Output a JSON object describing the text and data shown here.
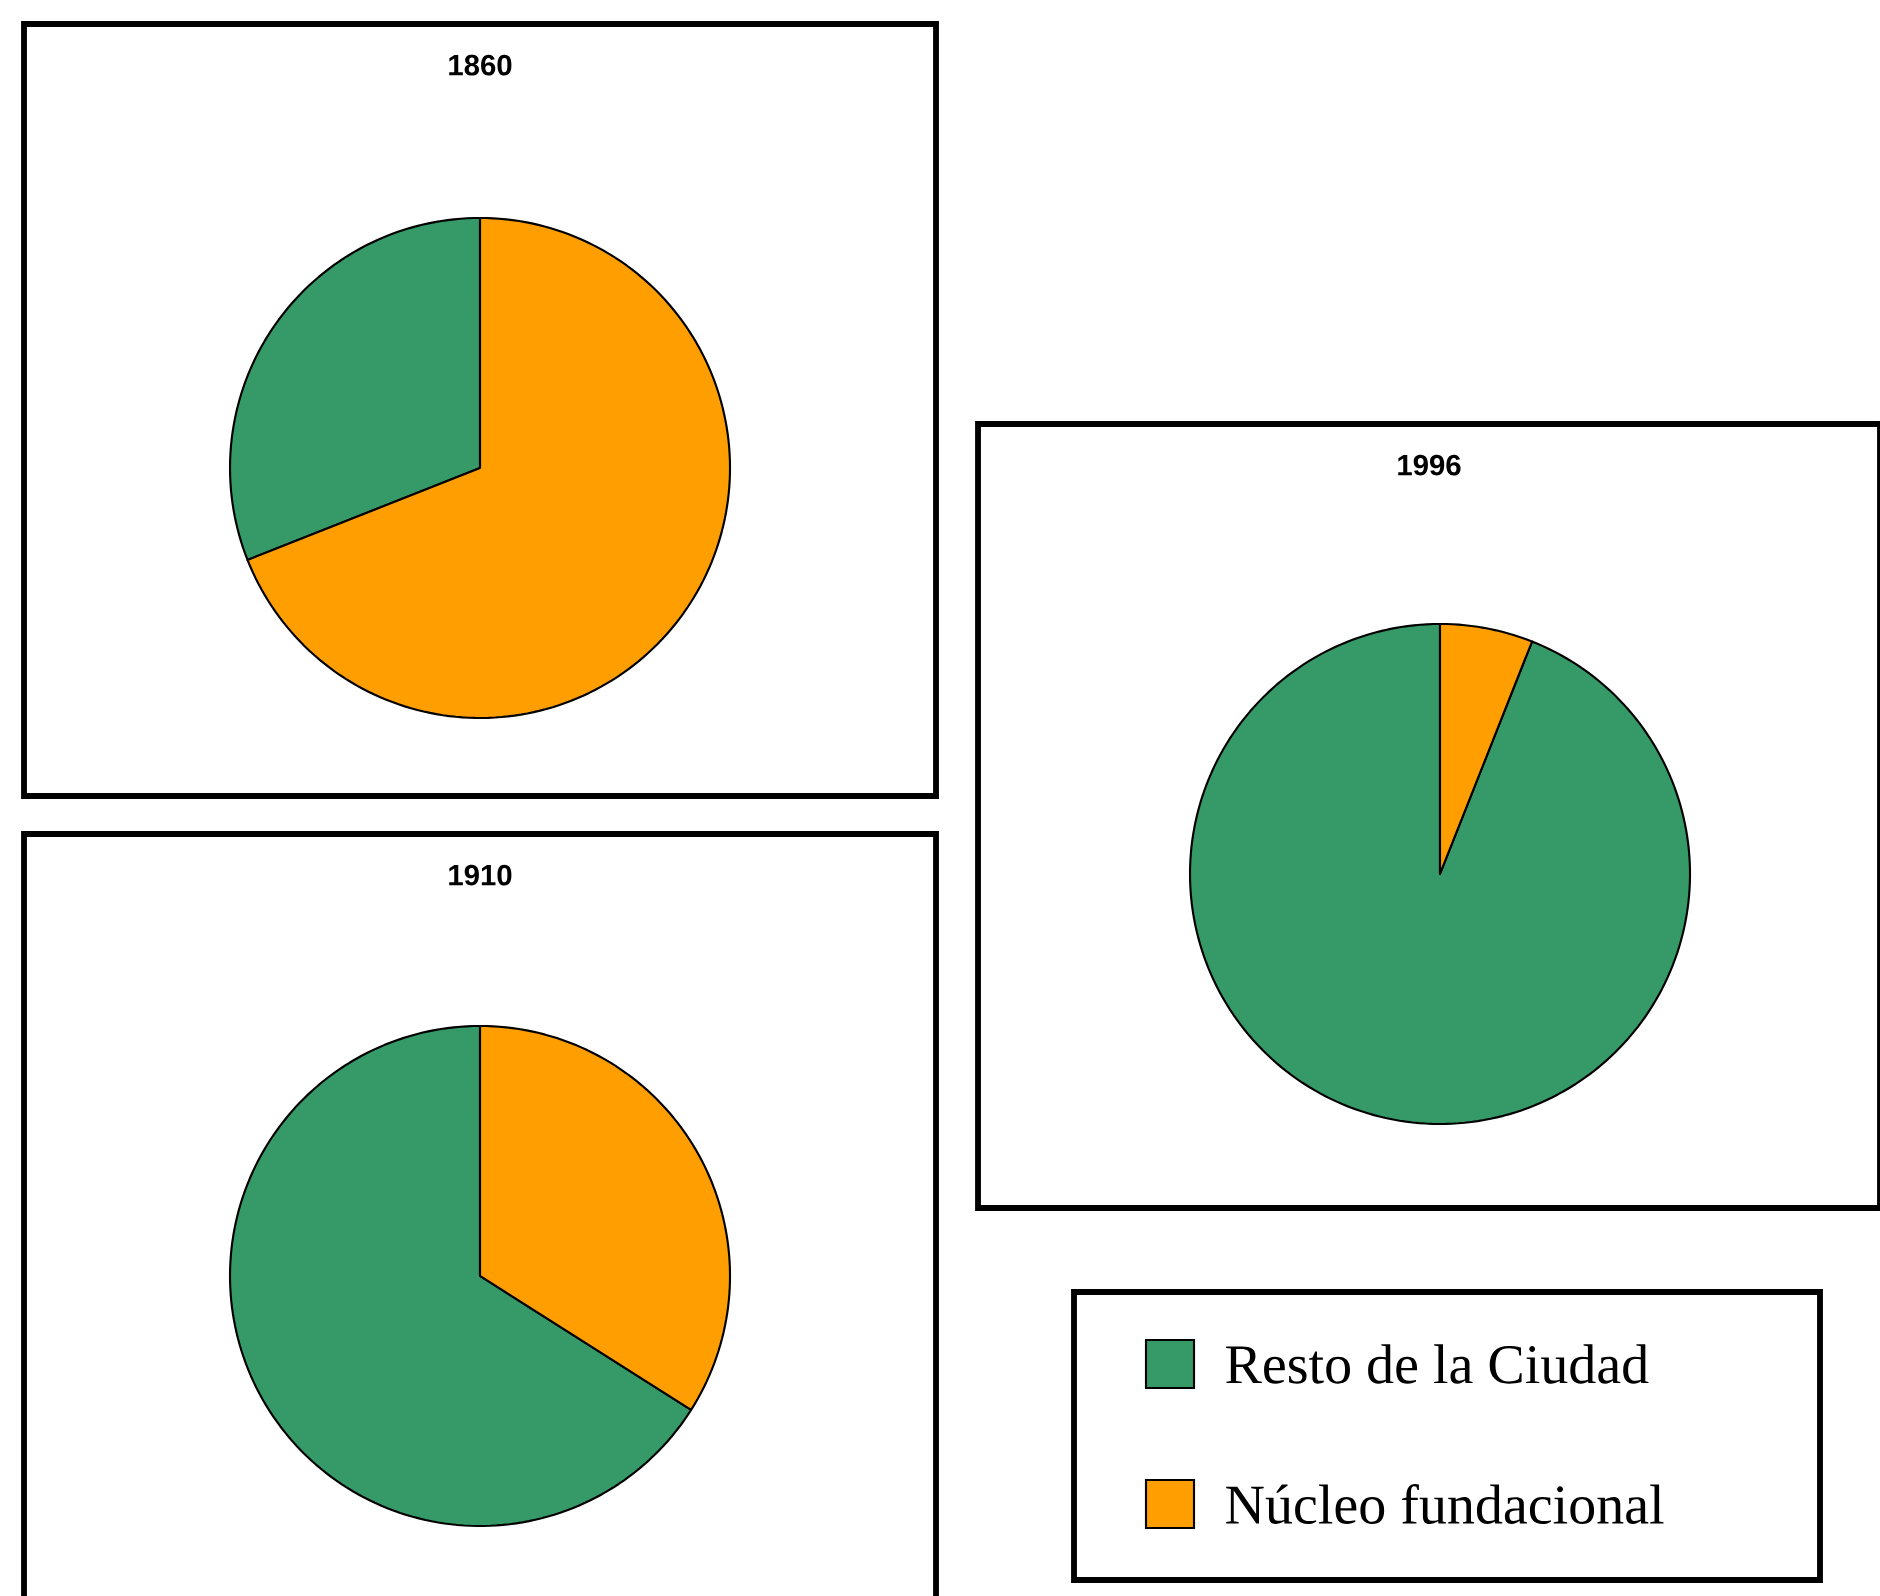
{
  "chart_data": [
    {
      "type": "pie",
      "title": "1860",
      "categories": [
        "Resto de la Ciudad",
        "Núcleo fundacional"
      ],
      "values": [
        31,
        69
      ],
      "colors": [
        "#359a67",
        "#ff9e00"
      ],
      "legend": "bottom right"
    },
    {
      "type": "pie",
      "title": "1910",
      "categories": [
        null,
        null
      ],
      "values": [
        66,
        34
      ],
      "colors": [
        "#359a67",
        "#ff9e00"
      ]
    },
    {
      "type": "pie",
      "title": "1996",
      "categories": [
        null,
        null
      ],
      "values": [
        94,
        6
      ],
      "colors": [
        "#359a67",
        "#ff9e00"
      ]
    }
  ]
}
